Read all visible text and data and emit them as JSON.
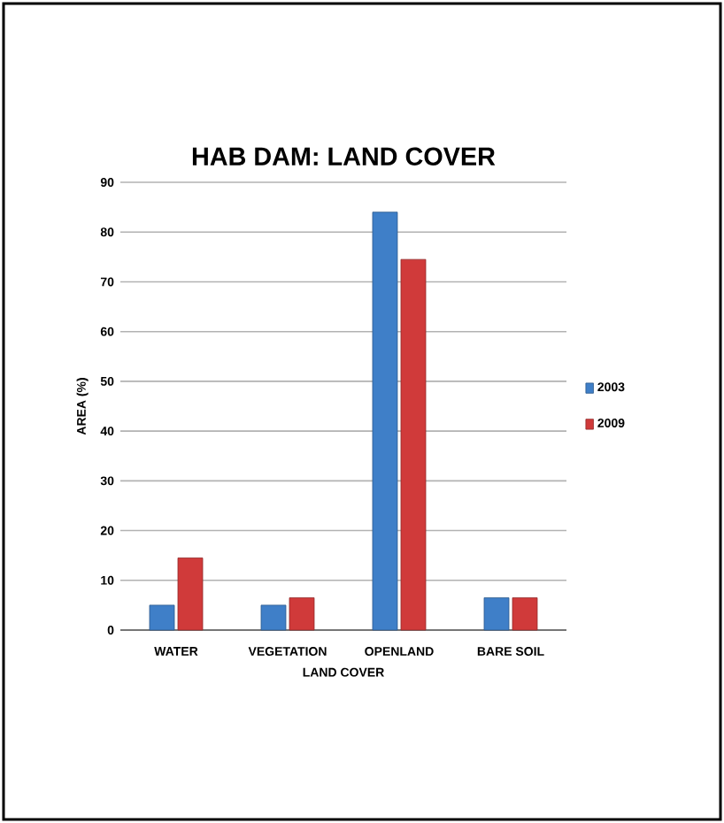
{
  "chart_data": {
    "type": "bar",
    "title": "HAB DAM: LAND COVER",
    "xlabel": "LAND COVER",
    "ylabel": "AREA (%)",
    "categories": [
      "WATER",
      "VEGETATION",
      "OPENLAND",
      "BARE SOIL"
    ],
    "series": [
      {
        "name": "2003",
        "color": "#3f7fc8",
        "values": [
          5,
          5,
          84,
          6.5
        ]
      },
      {
        "name": "2009",
        "color": "#d03a3a",
        "values": [
          14.5,
          6.5,
          74.5,
          6.5
        ]
      }
    ],
    "ylim": [
      0,
      90
    ],
    "yticks": [
      0,
      10,
      20,
      30,
      40,
      50,
      60,
      70,
      80,
      90
    ],
    "grid": "y",
    "legend": "right"
  }
}
